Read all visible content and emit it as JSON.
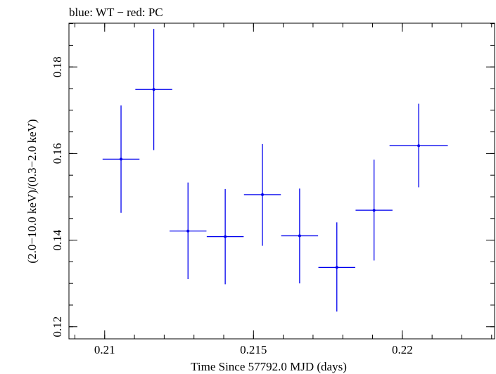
{
  "chart_data": {
    "type": "scatter",
    "title": "blue: WT − red: PC",
    "xlabel": "Time Since 57792.0 MJD (days)",
    "ylabel": "(2.0−10.0 keV)/(0.3−2.0 keV)",
    "xlim": [
      0.2088,
      0.2231
    ],
    "ylim": [
      0.1172,
      0.1901
    ],
    "x_ticks": [
      {
        "value": 0.21,
        "label": "0.21"
      },
      {
        "value": 0.215,
        "label": "0.215"
      },
      {
        "value": 0.22,
        "label": "0.22"
      }
    ],
    "y_ticks": [
      {
        "value": 0.12,
        "label": "0.12"
      },
      {
        "value": 0.14,
        "label": "0.14"
      },
      {
        "value": 0.16,
        "label": "0.16"
      },
      {
        "value": 0.18,
        "label": "0.18"
      }
    ],
    "x_minor_step": 0.001,
    "y_minor_step": 0.005,
    "grid": false,
    "colors": {
      "WT": "#0000ee",
      "PC": "#ee0000",
      "axes": "#000000"
    },
    "series": [
      {
        "name": "WT",
        "color": "#0000ee",
        "points": [
          {
            "x": 0.21055,
            "xerr": 0.00062,
            "y": 0.1587,
            "ylo": 0.1463,
            "yhi": 0.1711
          },
          {
            "x": 0.21165,
            "xerr": 0.00062,
            "y": 0.1748,
            "ylo": 0.1608,
            "yhi": 0.1888
          },
          {
            "x": 0.2128,
            "xerr": 0.00062,
            "y": 0.1421,
            "ylo": 0.131,
            "yhi": 0.1533
          },
          {
            "x": 0.21405,
            "xerr": 0.00062,
            "y": 0.1408,
            "ylo": 0.1298,
            "yhi": 0.1518
          },
          {
            "x": 0.2153,
            "xerr": 0.00062,
            "y": 0.1505,
            "ylo": 0.1387,
            "yhi": 0.1622
          },
          {
            "x": 0.21655,
            "xerr": 0.00062,
            "y": 0.141,
            "ylo": 0.13,
            "yhi": 0.1519
          },
          {
            "x": 0.2178,
            "xerr": 0.00062,
            "y": 0.1337,
            "ylo": 0.1235,
            "yhi": 0.1441
          },
          {
            "x": 0.21905,
            "xerr": 0.00062,
            "y": 0.1469,
            "ylo": 0.1353,
            "yhi": 0.1586
          },
          {
            "x": 0.22055,
            "xerr": 0.00098,
            "y": 0.1618,
            "ylo": 0.1522,
            "yhi": 0.1715
          }
        ]
      }
    ]
  }
}
